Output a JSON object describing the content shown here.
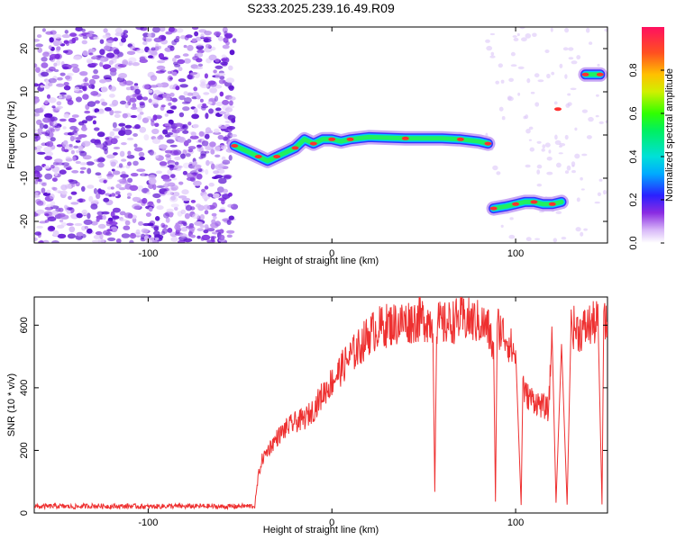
{
  "chart_data": [
    {
      "type": "heatmap",
      "title": "S233.2025.239.16.49.R09",
      "xlabel": "Height of straight line (km)",
      "ylabel": "Frequency (Hz)",
      "xlim": [
        -162,
        150
      ],
      "ylim": [
        -25,
        25
      ],
      "x_ticks": [
        -100,
        0,
        100
      ],
      "y_ticks": [
        -20,
        -10,
        0,
        10,
        20
      ],
      "colorbar": {
        "label": "Normalized spectral amplitude",
        "ticks": [
          "0.0",
          "0.2",
          "0.4",
          "0.6",
          "0.8"
        ],
        "range": [
          0,
          1
        ]
      },
      "features": [
        {
          "name": "noise",
          "x_range": [
            -162,
            -53
          ],
          "y_range": [
            -25,
            25
          ]
        },
        {
          "name": "main-trace",
          "points": [
            [
              -53,
              -2.5
            ],
            [
              -45,
              -4
            ],
            [
              -40,
              -5
            ],
            [
              -35,
              -6
            ],
            [
              -30,
              -5
            ],
            [
              -25,
              -4
            ],
            [
              -20,
              -3
            ],
            [
              -15,
              -1
            ],
            [
              -10,
              -2
            ],
            [
              -5,
              -1
            ],
            [
              0,
              -1
            ],
            [
              5,
              -1.5
            ],
            [
              10,
              -1
            ],
            [
              20,
              -0.5
            ],
            [
              40,
              -0.8
            ],
            [
              60,
              -0.8
            ],
            [
              70,
              -1
            ],
            [
              80,
              -1.5
            ],
            [
              85,
              -2
            ]
          ]
        },
        {
          "name": "low-trace",
          "points": [
            [
              88,
              -17
            ],
            [
              95,
              -16.5
            ],
            [
              100,
              -16
            ],
            [
              105,
              -15.5
            ],
            [
              110,
              -15.5
            ],
            [
              115,
              -16
            ],
            [
              120,
              -16
            ],
            [
              125,
              -15.5
            ]
          ]
        },
        {
          "name": "high-blob",
          "points": [
            [
              138,
              14
            ],
            [
              142,
              14
            ],
            [
              146,
              14
            ]
          ]
        },
        {
          "name": "mid-blob",
          "points": [
            [
              123,
              6
            ]
          ]
        }
      ]
    },
    {
      "type": "line",
      "xlabel": "Height of straight line (km)",
      "ylabel": "SNR (10 * v/v)",
      "xlim": [
        -162,
        150
      ],
      "ylim": [
        0,
        690
      ],
      "x_ticks": [
        -100,
        0,
        100
      ],
      "y_ticks": [
        0,
        200,
        400,
        600
      ],
      "series": [
        {
          "color": "#ee3030",
          "x": [
            -162,
            -150,
            -140,
            -130,
            -120,
            -110,
            -100,
            -90,
            -80,
            -70,
            -60,
            -50,
            -42,
            -40,
            -38,
            -35,
            -30,
            -25,
            -20,
            -15,
            -10,
            -5,
            0,
            5,
            10,
            15,
            20,
            25,
            30,
            40,
            50,
            55,
            56,
            57,
            60,
            70,
            80,
            85,
            88,
            89,
            90,
            95,
            100,
            103,
            104,
            105,
            110,
            115,
            118,
            120,
            122,
            125,
            128,
            130,
            135,
            140,
            145,
            147,
            148,
            150
          ],
          "y": [
            20,
            22,
            20,
            23,
            21,
            22,
            20,
            22,
            21,
            22,
            20,
            22,
            22,
            120,
            170,
            200,
            240,
            270,
            290,
            300,
            330,
            380,
            420,
            460,
            500,
            530,
            570,
            590,
            600,
            610,
            620,
            610,
            70,
            610,
            600,
            620,
            610,
            590,
            520,
            30,
            600,
            560,
            500,
            30,
            420,
            380,
            360,
            340,
            330,
            600,
            30,
            590,
            20,
            600,
            580,
            600,
            610,
            30,
            600,
            610
          ]
        }
      ]
    }
  ]
}
